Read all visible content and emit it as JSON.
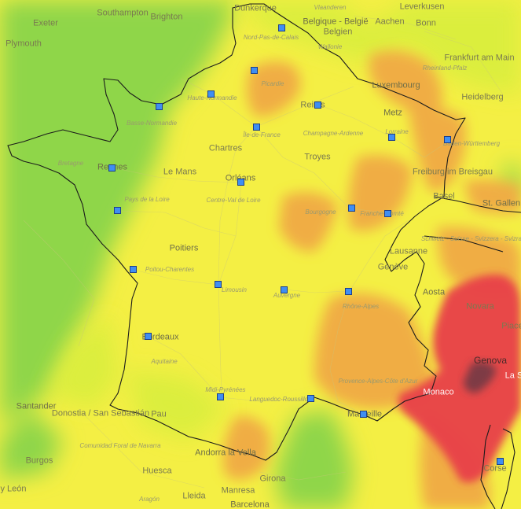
{
  "map": {
    "colors": {
      "good": "#8fd64a",
      "fair": "#d9ee3e",
      "moderate": "#f4ef44",
      "poor": "#f0a845",
      "very_poor": "#e8414a",
      "extremely_poor": "#7e3a45",
      "border": "#1b1b1b"
    },
    "labels": {
      "southampton": "Southampton",
      "brighton": "Brighton",
      "exeter": "Exeter",
      "plymouth": "Plymouth",
      "dunkerque": "Dunkerque",
      "vlaanderen": "Vlaanderen",
      "leverkusen": "Leverkusen",
      "belgique": "Belgique - België",
      "belgien": "Belgien",
      "aachen": "Aachen",
      "bonn": "Bonn",
      "nord_pas_de_calais": "Nord-Pas-de-Calais",
      "wallonie": "Wallonie",
      "frankfurt": "Frankfurt am Main",
      "picardie": "Picardie",
      "luxembourg": "Luxembourg",
      "rheinland_pfalz": "Rheinland-Pfalz",
      "haute_normandie": "Haute-Normandie",
      "heidelberg": "Heidelberg",
      "reims": "Reims",
      "basse_normandie": "Basse-Normandie",
      "metz": "Metz",
      "ile_de_france": "Île-de-France",
      "champagne_ardenne": "Champagne-Ardenne",
      "lorraine": "Lorraine",
      "baden_wurttemberg": "Baden-Württemberg",
      "chartres": "Chartres",
      "bretagne": "Bretagne",
      "troyes": "Troyes",
      "rennes": "Rennes",
      "le_mans": "Le Mans",
      "orleans": "Orléans",
      "freiburg": "Freiburg im Breisgau",
      "centre_val_de_loire": "Centre-Val de Loire",
      "pays_de_la_loire": "Pays de la Loire",
      "bourgogne": "Bourgogne",
      "franche_comte": "Franche-Comté",
      "basel": "Basel",
      "st_gallen": "St. Gallen",
      "schweiz": "Schweiz - Suisse - Svizzera - Svizra",
      "poitiers": "Poitiers",
      "lausanne": "Lausanne",
      "poitou_charentes": "Poitou-Charentes",
      "geneve": "Genève",
      "limousin": "Limousin",
      "auvergne": "Auvergne",
      "aosta": "Aosta",
      "rhone_alpes": "Rhône-Alpes",
      "novara": "Novara",
      "piacenza": "Piace",
      "bordeaux": "Bordeaux",
      "aquitaine": "Aquitaine",
      "genova": "Genova",
      "la_spezia": "La S",
      "provence": "Provence-Alpes-Côte d'Azur",
      "midi_pyrenees": "Midi-Pyrénées",
      "monaco": "Monaco",
      "santander": "Santander",
      "donostia": "Donostia / San Sebastián",
      "pau": "Pau",
      "languedoc": "Languedoc-Roussillon",
      "marseille": "Marseille",
      "comunidad_foral": "Comunidad Foral de Navarra",
      "burgos": "Burgos",
      "andorra": "Andorra la Vella",
      "huesca": "Huesca",
      "girona": "Girona",
      "corse": "Corse",
      "aragon": "Aragón",
      "leon": "y León",
      "lleida": "Lleida",
      "manresa": "Manresa",
      "barcelona": "Barcelona"
    }
  }
}
